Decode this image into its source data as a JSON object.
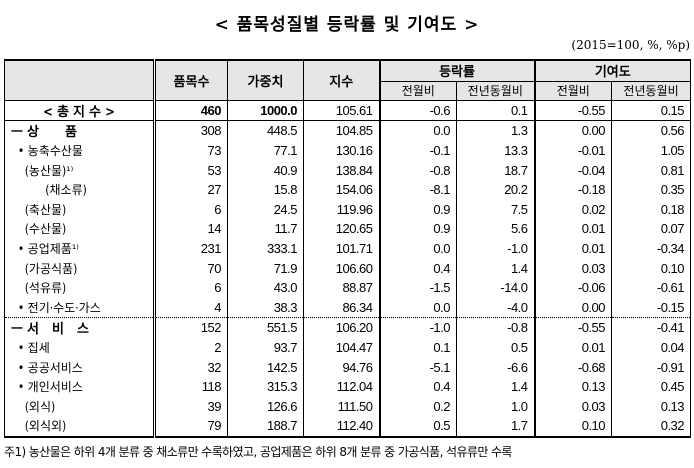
{
  "title": "< 품목성질별 등락률 및 기여도 >",
  "unit": "(2015=100, %, %p)",
  "headers": {
    "items": "품목수",
    "weight": "가중치",
    "index": "지수",
    "change": "등락률",
    "contribution": "기여도",
    "mom": "전월비",
    "yoy": "전년동월비"
  },
  "rows": [
    {
      "label": "< 총 지 수 >",
      "cls": "total",
      "v": [
        "460",
        "1000.0",
        "105.61",
        "-0.6",
        "0.1",
        "-0.55",
        "0.15"
      ]
    },
    {
      "label": "ㅡ 상　　품",
      "cls": "major",
      "v": [
        "308",
        "448.5",
        "104.85",
        "0.0",
        "1.3",
        "0.00",
        "0.56"
      ]
    },
    {
      "label": "  • 농축수산물",
      "v": [
        "73",
        "77.1",
        "130.16",
        "-0.1",
        "13.3",
        "-0.01",
        "1.05"
      ]
    },
    {
      "label": "    (농산물)¹⁾",
      "v": [
        "53",
        "40.9",
        "138.84",
        "-0.8",
        "18.7",
        "-0.04",
        "0.81"
      ]
    },
    {
      "label": "          (채소류)",
      "v": [
        "27",
        "15.8",
        "154.06",
        "-8.1",
        "20.2",
        "-0.18",
        "0.35"
      ]
    },
    {
      "label": "    (축산물)",
      "v": [
        "6",
        "24.5",
        "119.96",
        "0.9",
        "7.5",
        "0.02",
        "0.18"
      ]
    },
    {
      "label": "    (수산물)",
      "v": [
        "14",
        "11.7",
        "120.65",
        "0.9",
        "5.6",
        "0.01",
        "0.07"
      ]
    },
    {
      "label": "  • 공업제품¹⁾",
      "v": [
        "231",
        "333.1",
        "101.71",
        "0.0",
        "-1.0",
        "0.01",
        "-0.34"
      ]
    },
    {
      "label": "    (가공식품)",
      "v": [
        "70",
        "71.9",
        "106.60",
        "0.4",
        "1.4",
        "0.03",
        "0.10"
      ]
    },
    {
      "label": "    (석유류)",
      "v": [
        "6",
        "43.0",
        "88.87",
        "-1.5",
        "-14.0",
        "-0.06",
        "-0.61"
      ]
    },
    {
      "label": "  • 전기·수도·가스",
      "v": [
        "4",
        "38.3",
        "86.34",
        "0.0",
        "-4.0",
        "0.00",
        "-0.15"
      ]
    },
    {
      "label": "ㅡ 서　비　스",
      "cls": "major sep",
      "v": [
        "152",
        "551.5",
        "106.20",
        "-1.0",
        "-0.8",
        "-0.55",
        "-0.41"
      ]
    },
    {
      "label": "  • 집세",
      "v": [
        "2",
        "93.7",
        "104.47",
        "0.1",
        "0.5",
        "0.01",
        "0.04"
      ]
    },
    {
      "label": "  • 공공서비스",
      "v": [
        "32",
        "142.5",
        "94.76",
        "-5.1",
        "-6.6",
        "-0.68",
        "-0.91"
      ]
    },
    {
      "label": "  • 개인서비스",
      "v": [
        "118",
        "315.3",
        "112.04",
        "0.4",
        "1.4",
        "0.13",
        "0.45"
      ]
    },
    {
      "label": "    (외식)",
      "v": [
        "39",
        "126.6",
        "111.50",
        "0.2",
        "1.0",
        "0.03",
        "0.13"
      ]
    },
    {
      "label": "    (외식외)",
      "cls": "last",
      "v": [
        "79",
        "188.7",
        "112.40",
        "0.5",
        "1.7",
        "0.10",
        "0.32"
      ]
    }
  ],
  "footnote": "주1) 농산물은 하위 4개 분류 중 채소류만 수록하였고, 공업제품은 하위 8개 분류 중 가공식품, 석유류만 수록"
}
